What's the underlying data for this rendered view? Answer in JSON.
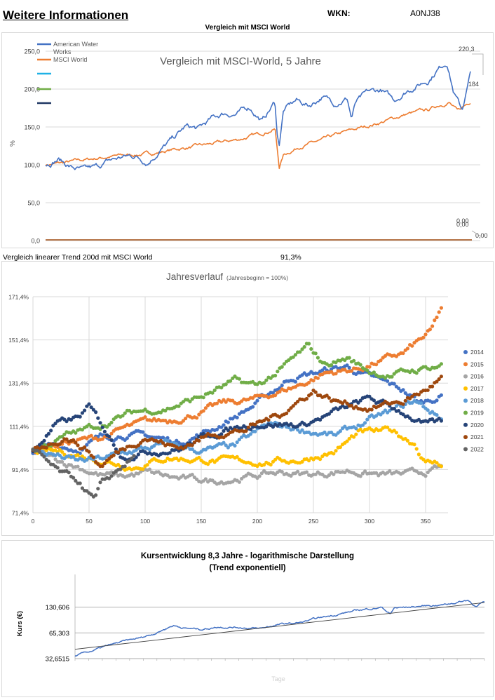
{
  "header": {
    "title": "Weitere Informationen",
    "wkn_label": "WKN:",
    "wkn_value": "A0NJ38"
  },
  "chart1_header": "Vergleich mit MSCI World",
  "trend": {
    "label": "Vergleich linearer Trend 200d mit MSCI World",
    "value": "91,3%"
  },
  "chart_data": [
    {
      "type": "line",
      "title": "Vergleich mit MSCI-World, 5 Jahre",
      "ylabel": "%",
      "ylim": [
        0,
        250
      ],
      "yticks": [
        "0,0",
        "50,0",
        "100,0",
        "150,0",
        "200,0",
        "250,0"
      ],
      "legend": [
        "American Water Works",
        "MSCI World",
        "",
        "",
        ""
      ],
      "legend_colors": [
        "#4472c4",
        "#ed7d31",
        "#1fb1e6",
        "#70ad47",
        "#203864"
      ],
      "end_labels": {
        "series1": "220,3",
        "series2": "184",
        "zero_a": "0,00",
        "zero_b": "0,00",
        "zero_c": "0,00"
      },
      "series": [
        {
          "name": "American Water Works",
          "color": "#4472c4",
          "x": [
            0,
            0.03,
            0.06,
            0.09,
            0.12,
            0.15,
            0.18,
            0.21,
            0.24,
            0.27,
            0.3,
            0.33,
            0.36,
            0.39,
            0.42,
            0.45,
            0.48,
            0.51,
            0.54,
            0.545,
            0.55,
            0.56,
            0.59,
            0.62,
            0.65,
            0.68,
            0.71,
            0.72,
            0.73,
            0.76,
            0.79,
            0.82,
            0.85,
            0.87,
            0.9,
            0.92,
            0.945,
            0.96,
            0.98,
            1.0
          ],
          "y": [
            100,
            108,
            97,
            92,
            96,
            105,
            110,
            112,
            104,
            120,
            134,
            150,
            147,
            160,
            168,
            167,
            176,
            158,
            183,
            140,
            128,
            172,
            185,
            178,
            190,
            182,
            188,
            162,
            182,
            195,
            198,
            185,
            198,
            204,
            212,
            225,
            237,
            198,
            172,
            220
          ]
        },
        {
          "name": "MSCI World",
          "color": "#ed7d31",
          "x": [
            0,
            0.05,
            0.1,
            0.15,
            0.2,
            0.25,
            0.3,
            0.35,
            0.4,
            0.45,
            0.5,
            0.54,
            0.55,
            0.56,
            0.6,
            0.65,
            0.7,
            0.75,
            0.8,
            0.85,
            0.9,
            0.93,
            0.95,
            0.97,
            1.0
          ],
          "y": [
            100,
            103,
            107,
            111,
            113,
            115,
            120,
            124,
            128,
            133,
            140,
            148,
            97,
            113,
            125,
            132,
            142,
            150,
            158,
            167,
            172,
            180,
            183,
            170,
            184
          ]
        }
      ]
    },
    {
      "type": "scatter",
      "title": "Jahresverlauf",
      "subtitle": "(Jahresbeginn = 100%)",
      "xlim": [
        0,
        370
      ],
      "ylim": [
        71.4,
        171.4
      ],
      "xticks": [
        "0",
        "50",
        "100",
        "150",
        "200",
        "250",
        "300",
        "350"
      ],
      "yticks": [
        "71,4%",
        "91,4%",
        "111,4%",
        "131,4%",
        "151,4%",
        "171,4%"
      ],
      "series": [
        {
          "name": "2014",
          "color": "#4472c4",
          "days": 365,
          "x": [
            0,
            20,
            40,
            60,
            80,
            100,
            130,
            160,
            200,
            230,
            260,
            280,
            300,
            330,
            345,
            365
          ],
          "y": [
            100,
            103,
            101,
            106,
            108,
            107,
            104,
            110,
            122,
            134,
            137,
            139,
            134,
            128,
            122,
            126
          ]
        },
        {
          "name": "2015",
          "color": "#ed7d31",
          "days": 365,
          "x": [
            0,
            30,
            60,
            80,
            100,
            120,
            150,
            170,
            200,
            240,
            260,
            290,
            330,
            355,
            365
          ],
          "y": [
            100,
            104,
            106,
            110,
            113,
            114,
            118,
            122,
            124,
            131,
            136,
            138,
            145,
            155,
            167
          ]
        },
        {
          "name": "2016",
          "color": "#a5a5a5",
          "days": 365,
          "x": [
            0,
            20,
            40,
            60,
            80,
            100,
            130,
            160,
            190,
            220,
            250,
            280,
            310,
            340,
            365
          ],
          "y": [
            100,
            96,
            93,
            89,
            88,
            90,
            87,
            86,
            88,
            90,
            89,
            91,
            89,
            89,
            92
          ]
        },
        {
          "name": "2017",
          "color": "#ffc000",
          "days": 365,
          "x": [
            0,
            30,
            60,
            90,
            120,
            150,
            180,
            210,
            240,
            270,
            290,
            320,
            340,
            350,
            365
          ],
          "y": [
            100,
            99,
            96,
            93,
            97,
            96,
            95,
            95,
            96,
            100,
            108,
            109,
            104,
            95,
            94
          ]
        },
        {
          "name": "2018",
          "color": "#5b9bd5",
          "days": 365,
          "x": [
            0,
            20,
            40,
            60,
            90,
            120,
            150,
            180,
            210,
            240,
            270,
            300,
            320,
            340,
            365
          ],
          "y": [
            100,
            98,
            95,
            96,
            100,
            103,
            100,
            102,
            112,
            110,
            107,
            114,
            118,
            123,
            115
          ]
        },
        {
          "name": "2019",
          "color": "#70ad47",
          "days": 365,
          "x": [
            0,
            30,
            60,
            90,
            120,
            150,
            180,
            200,
            220,
            245,
            260,
            280,
            300,
            320,
            365
          ],
          "y": [
            100,
            107,
            112,
            118,
            120,
            125,
            132,
            130,
            137,
            148,
            140,
            143,
            137,
            135,
            140
          ]
        },
        {
          "name": "2020",
          "color": "#264478",
          "days": 365,
          "x": [
            0,
            20,
            40,
            50,
            60,
            70,
            80,
            100,
            130,
            160,
            200,
            240,
            270,
            300,
            330,
            350,
            365
          ],
          "y": [
            100,
            112,
            115,
            120,
            113,
            105,
            98,
            100,
            101,
            108,
            113,
            112,
            118,
            124,
            118,
            112,
            113
          ]
        },
        {
          "name": "2021",
          "color": "#9e480e",
          "days": 365,
          "x": [
            0,
            30,
            50,
            60,
            80,
            100,
            130,
            160,
            190,
            220,
            250,
            270,
            300,
            330,
            350,
            365
          ],
          "y": [
            100,
            107,
            100,
            93,
            101,
            107,
            101,
            108,
            110,
            117,
            128,
            123,
            120,
            123,
            128,
            134
          ]
        },
        {
          "name": "2022",
          "color": "#636363",
          "days": 90,
          "x": [
            0,
            10,
            20,
            30,
            40,
            50,
            55,
            60,
            70,
            80,
            90
          ],
          "y": [
            100,
            96,
            91,
            88,
            86,
            80,
            77,
            83,
            88,
            93,
            97
          ]
        }
      ]
    },
    {
      "type": "line",
      "title": "Kursentwicklung 8,3 Jahre - logarithmische Darstellung",
      "subtitle": "(Trend exponentiell)",
      "ylabel": "Kurs (€)",
      "xlabel": "Tage",
      "yscale": "log",
      "ylim": [
        32.6515,
        261.21
      ],
      "yticks": [
        "32,6515",
        "65,303",
        "130,606"
      ],
      "ytick_values": [
        32.6515,
        65.303,
        130.606
      ],
      "series": [
        {
          "name": "Kurs",
          "color": "#4472c4",
          "x": [
            0,
            0.04,
            0.08,
            0.12,
            0.16,
            0.2,
            0.24,
            0.27,
            0.31,
            0.35,
            0.4,
            0.45,
            0.5,
            0.55,
            0.6,
            0.65,
            0.7,
            0.75,
            0.77,
            0.78,
            0.81,
            0.86,
            0.9,
            0.93,
            0.96,
            0.98,
            1.0
          ],
          "y": [
            35,
            40,
            46,
            52,
            57,
            66,
            80,
            74,
            72,
            77,
            76,
            73,
            82,
            86,
            98,
            110,
            122,
            130,
            108,
            128,
            130,
            136,
            140,
            148,
            158,
            132,
            150
          ]
        },
        {
          "name": "Trend",
          "color": "#404040",
          "x": [
            0,
            1
          ],
          "y": [
            42,
            148
          ]
        }
      ]
    }
  ]
}
